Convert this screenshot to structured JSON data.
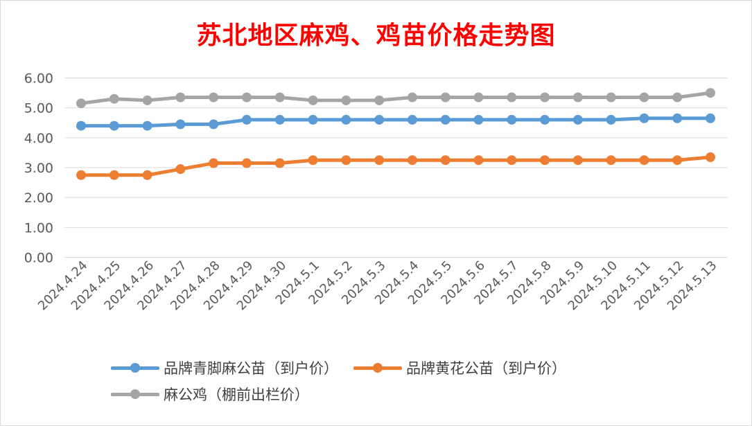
{
  "chart_data": {
    "type": "line",
    "title": "苏北地区麻鸡、鸡苗价格走势图",
    "categories": [
      "2024.4.24",
      "2024.4.25",
      "2024.4.26",
      "2024.4.27",
      "2024.4.28",
      "2024.4.29",
      "2024.4.30",
      "2024.5.1",
      "2024.5.2",
      "2024.5.3",
      "2024.5.4",
      "2024.5.5",
      "2024.5.6",
      "2024.5.7",
      "2024.5.8",
      "2024.5.9",
      "2024.5.10",
      "2024.5.11",
      "2024.5.12",
      "2024.5.13"
    ],
    "ylim": [
      0,
      6
    ],
    "yticks": [
      "0.00",
      "1.00",
      "2.00",
      "3.00",
      "4.00",
      "5.00",
      "6.00"
    ],
    "grid": true,
    "legend_position": "bottom",
    "series": [
      {
        "name": "品牌青脚麻公苗（到户价）",
        "color": "#5b9bd5",
        "values": [
          4.4,
          4.4,
          4.4,
          4.45,
          4.45,
          4.6,
          4.6,
          4.6,
          4.6,
          4.6,
          4.6,
          4.6,
          4.6,
          4.6,
          4.6,
          4.6,
          4.6,
          4.65,
          4.65,
          4.65
        ]
      },
      {
        "name": "品牌黄花公苗（到户价）",
        "color": "#ed7d31",
        "values": [
          2.75,
          2.75,
          2.75,
          2.95,
          3.15,
          3.15,
          3.15,
          3.25,
          3.25,
          3.25,
          3.25,
          3.25,
          3.25,
          3.25,
          3.25,
          3.25,
          3.25,
          3.25,
          3.25,
          3.35
        ]
      },
      {
        "name": "麻公鸡（棚前出栏价）",
        "color": "#a5a5a5",
        "values": [
          5.15,
          5.3,
          5.25,
          5.35,
          5.35,
          5.35,
          5.35,
          5.25,
          5.25,
          5.25,
          5.35,
          5.35,
          5.35,
          5.35,
          5.35,
          5.35,
          5.35,
          5.35,
          5.35,
          5.5
        ]
      }
    ]
  }
}
